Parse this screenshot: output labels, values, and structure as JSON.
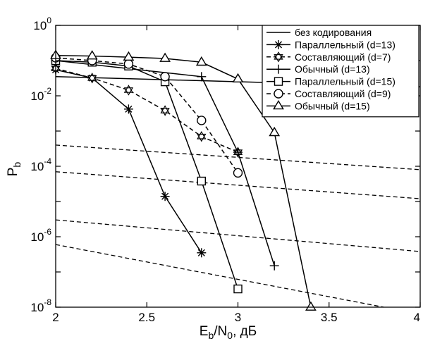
{
  "chart_data": {
    "type": "line",
    "xlabel": "E_b/N_0, дБ",
    "xlabel_parts": {
      "main1": "E",
      "sub1": "b",
      "main2": "/N",
      "sub2": "0",
      "rest": ", дБ"
    },
    "ylabel": "P_b",
    "ylabel_parts": {
      "main": "P",
      "sub": "b"
    },
    "xlim": [
      2,
      4
    ],
    "ylim": [
      1e-08,
      1
    ],
    "yscale": "log",
    "grid": false,
    "legend_position": "top-right",
    "x_ticks": [
      {
        "value": 2,
        "label": "2"
      },
      {
        "value": 2.5,
        "label": "2.5"
      },
      {
        "value": 3,
        "label": "3"
      },
      {
        "value": 3.5,
        "label": "3.5"
      },
      {
        "value": 4,
        "label": "4"
      }
    ],
    "y_ticks": [
      {
        "value": 1,
        "base": "10",
        "exp": "0"
      },
      {
        "value": 0.01,
        "base": "10",
        "exp": "-2"
      },
      {
        "value": 0.0001,
        "base": "10",
        "exp": "-4"
      },
      {
        "value": 1e-06,
        "base": "10",
        "exp": "-6"
      },
      {
        "value": 1e-08,
        "base": "10",
        "exp": "-8"
      }
    ],
    "series": [
      {
        "name": "без кодирования",
        "marker": "none",
        "dash": "solid",
        "x": [
          2,
          4
        ],
        "y": [
          0.035,
          0.018
        ]
      },
      {
        "name": "Параллельный (d=13)",
        "marker": "asterisk",
        "dash": "solid",
        "x": [
          2,
          2.2,
          2.4,
          2.6,
          2.8
        ],
        "y": [
          0.055,
          0.032,
          0.0042,
          1.4e-05,
          3.5e-07
        ]
      },
      {
        "name": "Составляющий (d=7)",
        "marker": "hexagram",
        "dash": "dashed",
        "x": [
          2,
          2.2,
          2.4,
          2.6,
          2.8,
          3.0
        ],
        "y": [
          0.06,
          0.032,
          0.0145,
          0.0038,
          0.0007,
          0.00025
        ]
      },
      {
        "name": "Обычный (d=13)",
        "marker": "plus",
        "dash": "solid",
        "x": [
          2,
          2.8,
          3.0,
          3.2
        ],
        "y": [
          0.1,
          0.035,
          0.00025,
          1.5e-07
        ]
      },
      {
        "name": "Параллельный (d=15)",
        "marker": "square",
        "dash": "solid",
        "x": [
          2,
          2.2,
          2.4,
          2.6,
          2.8,
          3.0
        ],
        "y": [
          0.1,
          0.09,
          0.07,
          0.025,
          3.8e-05,
          3.3e-08
        ]
      },
      {
        "name": "Составляющий (d=9)",
        "marker": "circle",
        "dash": "dashed",
        "x": [
          2,
          2.2,
          2.4,
          2.6,
          2.8,
          3.0
        ],
        "y": [
          0.12,
          0.1,
          0.08,
          0.035,
          0.002,
          6.5e-05
        ]
      },
      {
        "name": "Обычный (d=15)",
        "marker": "triangle",
        "dash": "solid",
        "x": [
          2,
          2.2,
          2.4,
          2.6,
          2.8,
          3.0,
          3.2,
          3.4
        ],
        "y": [
          0.14,
          0.135,
          0.125,
          0.115,
          0.09,
          0.03,
          0.0009,
          1e-08
        ]
      }
    ],
    "bound_lines": [
      {
        "dash": "dashed",
        "x": [
          2,
          4
        ],
        "y": [
          0.0004,
          8e-05
        ]
      },
      {
        "dash": "dashed",
        "x": [
          2,
          4
        ],
        "y": [
          7e-05,
          1.2e-05
        ]
      },
      {
        "dash": "dashed",
        "x": [
          2,
          4
        ],
        "y": [
          3e-06,
          3.8e-07
        ]
      },
      {
        "dash": "dashed",
        "x": [
          2,
          3.8
        ],
        "y": [
          6e-07,
          1e-08
        ]
      }
    ]
  }
}
